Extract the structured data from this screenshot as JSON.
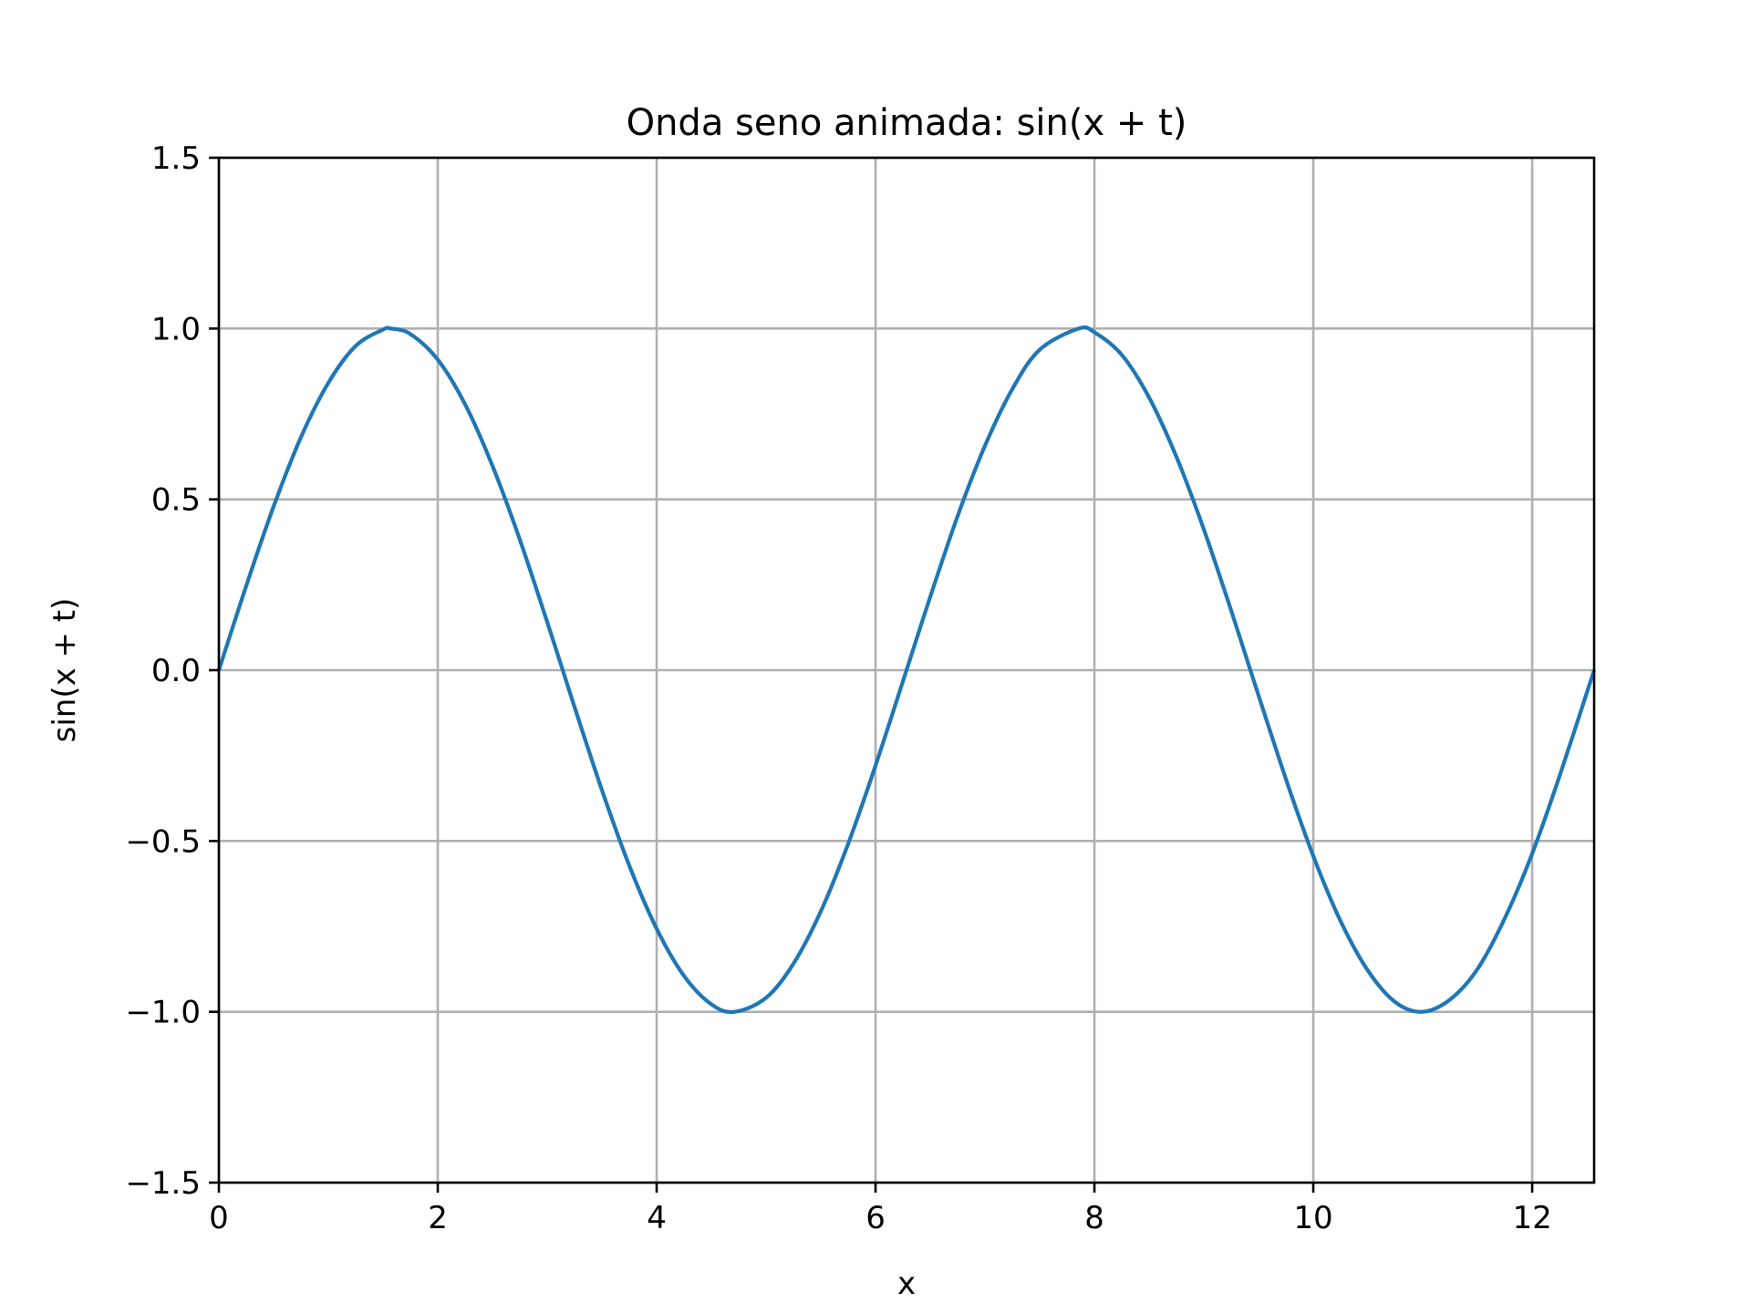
{
  "chart_data": {
    "type": "line",
    "title": "Onda seno animada: sin(x + t)",
    "xlabel": "x",
    "ylabel": "sin(x + t)",
    "xlim": [
      0,
      12.566
    ],
    "ylim": [
      -1.5,
      1.5
    ],
    "grid": true,
    "x_ticks": [
      0,
      2,
      4,
      6,
      8,
      10,
      12
    ],
    "x_tick_labels": [
      "0",
      "2",
      "4",
      "6",
      "8",
      "10",
      "12"
    ],
    "y_ticks": [
      -1.5,
      -1.0,
      -0.5,
      0.0,
      0.5,
      1.0,
      1.5
    ],
    "y_tick_labels": [
      "−1.5",
      "−1.0",
      "−0.5",
      "0.0",
      "0.5",
      "1.0",
      "1.5"
    ],
    "series": [
      {
        "color": "#1f77b4",
        "x": [
          0,
          0.25,
          0.5,
          0.75,
          1.0,
          1.25,
          1.5,
          1.571,
          1.75,
          2.0,
          2.25,
          2.5,
          2.75,
          3.0,
          3.142,
          3.25,
          3.5,
          3.75,
          4.0,
          4.25,
          4.5,
          4.712,
          5.0,
          5.25,
          5.5,
          5.75,
          6.0,
          6.283,
          6.5,
          6.75,
          7.0,
          7.25,
          7.5,
          7.854,
          8.0,
          8.25,
          8.5,
          8.75,
          9.0,
          9.25,
          9.425,
          9.75,
          10.0,
          10.25,
          10.5,
          10.75,
          10.996,
          11.25,
          11.5,
          11.75,
          12.0,
          12.25,
          12.566
        ],
        "y": [
          0.0,
          0.247,
          0.479,
          0.682,
          0.841,
          0.949,
          0.997,
          1.0,
          0.984,
          0.909,
          0.778,
          0.598,
          0.382,
          0.141,
          0.0,
          -0.108,
          -0.351,
          -0.572,
          -0.757,
          -0.895,
          -0.978,
          -1.0,
          -0.959,
          -0.859,
          -0.706,
          -0.508,
          -0.279,
          0.0,
          0.215,
          0.451,
          0.657,
          0.823,
          0.938,
          1.0,
          0.989,
          0.923,
          0.798,
          0.624,
          0.412,
          0.174,
          0.0,
          -0.319,
          -0.544,
          -0.735,
          -0.88,
          -0.972,
          -1.0,
          -0.964,
          -0.875,
          -0.726,
          -0.537,
          -0.31,
          0.0
        ]
      }
    ]
  }
}
